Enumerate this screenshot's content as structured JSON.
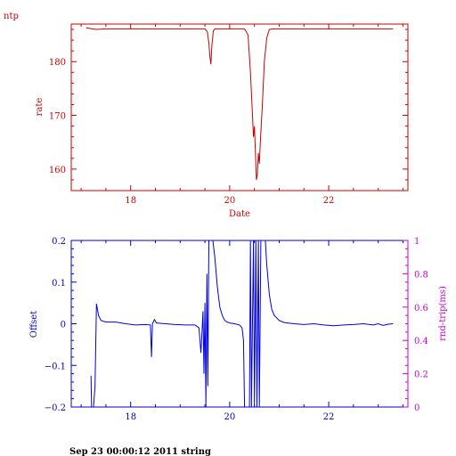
{
  "page": {
    "corner_label": "ntp",
    "footer_text": "Sep 23 00:00:12 2011 string"
  },
  "colors": {
    "top": "#cc0000",
    "bottom_left": "#0000cc",
    "bottom_right": "#cc00cc",
    "trace": "#0000dd"
  },
  "chart_data": [
    {
      "type": "line",
      "title": "",
      "xlabel": "Date",
      "ylabel": "rate",
      "xlim": [
        16.8,
        23.6
      ],
      "ylim": [
        156,
        187
      ],
      "xticks": [
        18,
        20,
        22
      ],
      "xtick_labels": [
        "18",
        "20",
        "22"
      ],
      "yticks": [
        160,
        170,
        180
      ],
      "ytick_labels": [
        "160",
        "170",
        "180"
      ],
      "grid": false,
      "series": [
        {
          "points": [
            [
              17.1,
              186.3
            ],
            [
              17.3,
              186.0
            ],
            [
              17.5,
              186.1
            ],
            [
              18.0,
              186.1
            ],
            [
              18.5,
              186.1
            ],
            [
              19.0,
              186.1
            ],
            [
              19.5,
              186.1
            ],
            [
              19.55,
              185.5
            ],
            [
              19.58,
              183.5
            ],
            [
              19.6,
              181.0
            ],
            [
              19.62,
              179.5
            ],
            [
              19.64,
              183.0
            ],
            [
              19.67,
              185.7
            ],
            [
              19.7,
              186.1
            ],
            [
              20.0,
              186.1
            ],
            [
              20.3,
              186.1
            ],
            [
              20.37,
              185.0
            ],
            [
              20.42,
              178.0
            ],
            [
              20.46,
              170.0
            ],
            [
              20.48,
              166.0
            ],
            [
              20.5,
              168.0
            ],
            [
              20.52,
              163.0
            ],
            [
              20.54,
              158.0
            ],
            [
              20.56,
              159.0
            ],
            [
              20.58,
              163.0
            ],
            [
              20.6,
              161.0
            ],
            [
              20.62,
              165.0
            ],
            [
              20.66,
              172.0
            ],
            [
              20.7,
              180.0
            ],
            [
              20.75,
              184.5
            ],
            [
              20.8,
              186.0
            ],
            [
              20.9,
              186.1
            ],
            [
              21.5,
              186.1
            ],
            [
              22.0,
              186.1
            ],
            [
              22.5,
              186.1
            ],
            [
              23.0,
              186.1
            ],
            [
              23.3,
              186.1
            ]
          ]
        }
      ]
    },
    {
      "type": "line",
      "title": "",
      "xlabel": "",
      "ylabel": "Offset",
      "y2label": "rnd-trip(ms)",
      "xlim": [
        16.8,
        23.6
      ],
      "ylim": [
        -0.2,
        0.2
      ],
      "y2lim": [
        0,
        1
      ],
      "xticks": [
        18,
        20,
        22
      ],
      "xtick_labels": [
        "18",
        "20",
        "22"
      ],
      "yticks": [
        -0.2,
        -0.1,
        0,
        0.1,
        0.2
      ],
      "ytick_labels": [
        "−0.2",
        "−0.1",
        "0",
        "0.1",
        "0.2"
      ],
      "y2ticks": [
        0,
        0.2,
        0.4,
        0.6,
        0.8,
        1
      ],
      "y2tick_labels": [
        "0",
        "0.2",
        "0.4",
        "0.6",
        "0.8",
        "1"
      ],
      "grid": false,
      "series": [
        {
          "points": [
            [
              17.2,
              -0.125
            ],
            [
              17.21,
              -0.2
            ],
            [
              17.25,
              -0.2
            ],
            [
              17.28,
              -0.15
            ],
            [
              17.31,
              0.048
            ],
            [
              17.35,
              0.02
            ],
            [
              17.4,
              0.008
            ],
            [
              17.5,
              0.004
            ],
            [
              17.7,
              0.004
            ],
            [
              17.9,
              0.0
            ],
            [
              18.1,
              -0.003
            ],
            [
              18.3,
              -0.002
            ],
            [
              18.4,
              -0.003
            ],
            [
              18.42,
              -0.08
            ],
            [
              18.44,
              0.0
            ],
            [
              18.48,
              0.01
            ],
            [
              18.52,
              0.002
            ],
            [
              18.7,
              0.0
            ],
            [
              18.9,
              -0.002
            ],
            [
              19.1,
              -0.003
            ],
            [
              19.3,
              -0.003
            ],
            [
              19.38,
              -0.01
            ],
            [
              19.42,
              -0.07
            ],
            [
              19.44,
              -0.02
            ],
            [
              19.46,
              0.03
            ],
            [
              19.48,
              -0.12
            ],
            [
              19.5,
              0.05
            ],
            [
              19.52,
              -0.2
            ],
            [
              19.54,
              0.12
            ],
            [
              19.56,
              -0.15
            ],
            [
              19.58,
              0.2
            ],
            [
              19.6,
              0.2
            ],
            [
              19.63,
              0.2
            ],
            [
              19.66,
              0.2
            ],
            [
              19.7,
              0.16
            ],
            [
              19.75,
              0.09
            ],
            [
              19.8,
              0.04
            ],
            [
              19.85,
              0.02
            ],
            [
              19.9,
              0.008
            ],
            [
              19.95,
              0.004
            ],
            [
              20.0,
              0.002
            ],
            [
              20.1,
              0.0
            ],
            [
              20.2,
              -0.003
            ],
            [
              20.25,
              -0.01
            ],
            [
              20.28,
              -0.04
            ],
            [
              20.3,
              -0.2
            ],
            [
              20.34,
              -0.2
            ],
            [
              20.4,
              -0.2
            ],
            [
              20.42,
              0.2
            ],
            [
              20.44,
              -0.2
            ],
            [
              20.48,
              0.2
            ],
            [
              20.5,
              -0.2
            ],
            [
              20.53,
              0.2
            ],
            [
              20.55,
              -0.2
            ],
            [
              20.58,
              0.2
            ],
            [
              20.6,
              -0.2
            ],
            [
              20.63,
              0.2
            ],
            [
              20.66,
              0.2
            ],
            [
              20.72,
              0.2
            ],
            [
              20.75,
              0.14
            ],
            [
              20.8,
              0.07
            ],
            [
              20.85,
              0.035
            ],
            [
              20.9,
              0.02
            ],
            [
              21.0,
              0.008
            ],
            [
              21.1,
              0.003
            ],
            [
              21.3,
              0.0
            ],
            [
              21.5,
              -0.002
            ],
            [
              21.7,
              0.0
            ],
            [
              21.9,
              -0.003
            ],
            [
              22.1,
              -0.005
            ],
            [
              22.3,
              -0.003
            ],
            [
              22.5,
              -0.002
            ],
            [
              22.7,
              0.0
            ],
            [
              22.9,
              -0.003
            ],
            [
              23.0,
              0.0
            ],
            [
              23.1,
              -0.004
            ],
            [
              23.2,
              -0.001
            ],
            [
              23.3,
              0.0
            ]
          ]
        }
      ]
    }
  ]
}
